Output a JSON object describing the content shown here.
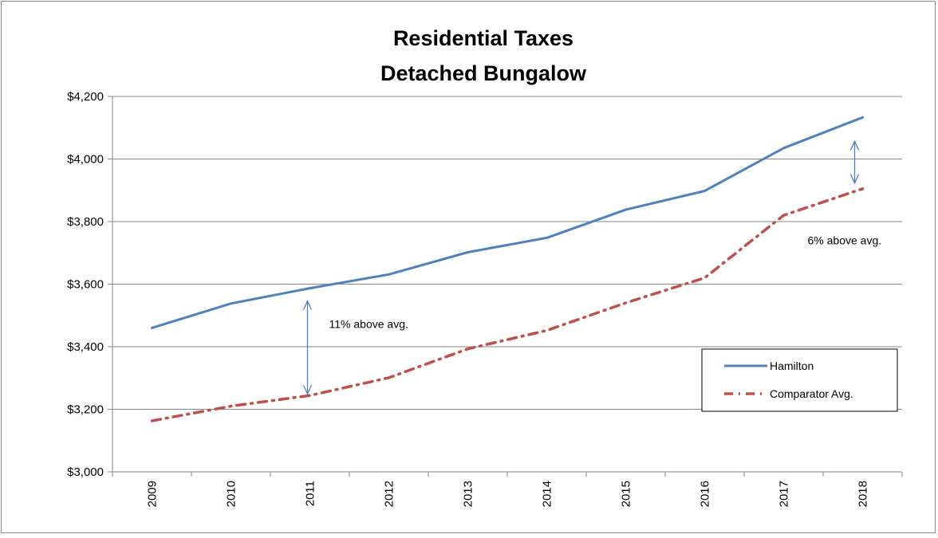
{
  "chart_data": {
    "type": "line",
    "title": "Residential Taxes",
    "subtitle": "Detached Bungalow",
    "xlabel": "",
    "ylabel": "",
    "categories": [
      "2009",
      "2010",
      "2011",
      "2012",
      "2013",
      "2014",
      "2015",
      "2016",
      "2017",
      "2018"
    ],
    "ylim": [
      3000,
      4200
    ],
    "yticks": [
      3000,
      3200,
      3400,
      3600,
      3800,
      4000,
      4200
    ],
    "ytick_labels": [
      "$3,000",
      "$3,200",
      "$3,400",
      "$3,600",
      "$3,800",
      "$4,000",
      "$4,200"
    ],
    "grid": "horizontal",
    "legend_position": "right",
    "series": [
      {
        "name": "Hamilton",
        "color": "#4F81BD",
        "style": "solid",
        "values": [
          3460,
          3538,
          3587,
          3631,
          3702,
          3748,
          3838,
          3898,
          4035,
          4133
        ]
      },
      {
        "name": "Comparator Avg.",
        "color": "#C0504D",
        "style": "dash-dot",
        "values": [
          3163,
          3210,
          3244,
          3301,
          3393,
          3452,
          3540,
          3620,
          3820,
          3905
        ]
      }
    ],
    "annotations": [
      {
        "text": "11% above avg.",
        "category": "2011",
        "arrow": "double-vertical"
      },
      {
        "text": "6% above avg.",
        "category": "2018",
        "arrow": "double-vertical"
      }
    ]
  }
}
